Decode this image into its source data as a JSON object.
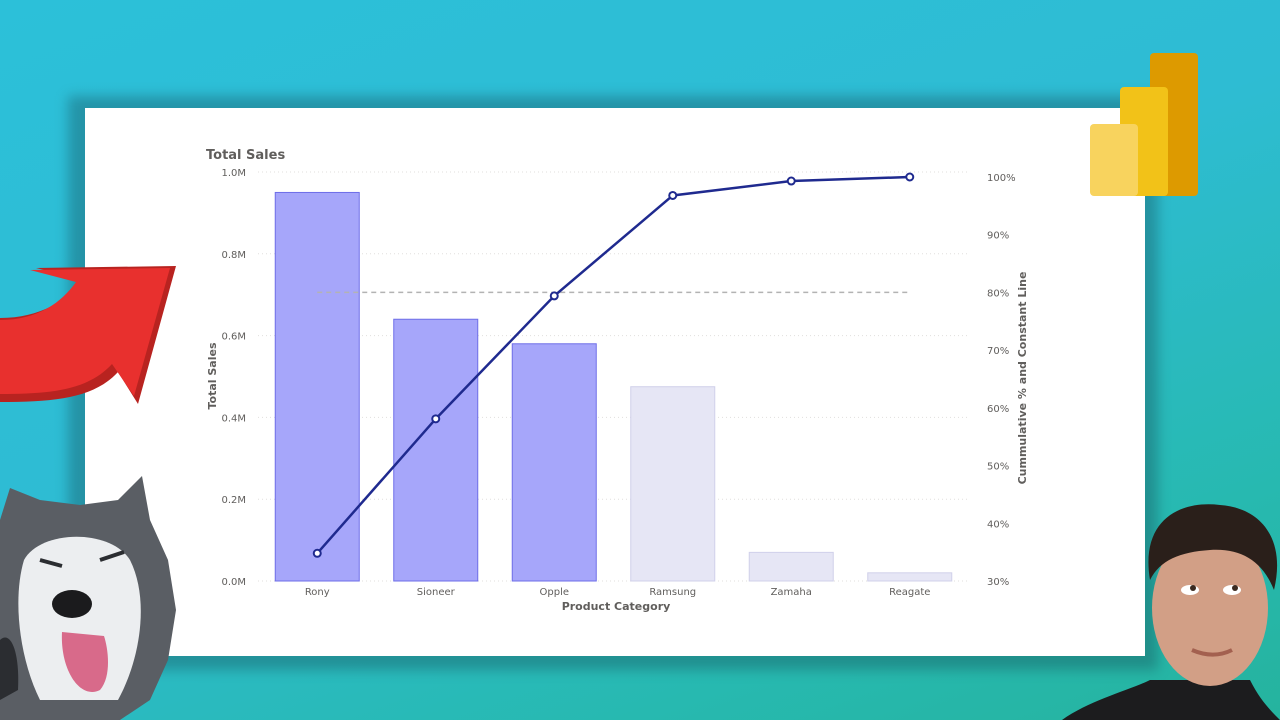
{
  "colors": {
    "bar_highlight": "#a6a6fa",
    "bar_highlight_stroke": "#6e6ee8",
    "bar_dim": "#e6e6f5",
    "bar_dim_stroke": "#d0d0ea",
    "line": "#1f2a8f",
    "constant_line": "#b3b3b3",
    "arrow": "#e8302e",
    "powerbi_light": "#f8d35e",
    "powerbi_mid": "#f2c218",
    "powerbi_dark": "#dd9a00"
  },
  "icons": {
    "logo": "power-bi-logo-icon",
    "arrow": "red-arrow-icon"
  },
  "chart_data": {
    "type": "bar",
    "title": "Total Sales",
    "xlabel": "Product Category",
    "ylabel": "Total Sales",
    "y2label": "Cummulative % and Constant Line",
    "categories": [
      "Rony",
      "Sioneer",
      "Opple",
      "Ramsung",
      "Zamaha",
      "Reagate"
    ],
    "ylim": [
      0,
      1000000
    ],
    "y_ticks": [
      {
        "value": 0,
        "label": "0.0M"
      },
      {
        "value": 200000,
        "label": "0.2M"
      },
      {
        "value": 400000,
        "label": "0.4M"
      },
      {
        "value": 600000,
        "label": "0.6M"
      },
      {
        "value": 800000,
        "label": "0.8M"
      },
      {
        "value": 1000000,
        "label": "1.0M"
      }
    ],
    "y2lim": [
      30,
      100
    ],
    "y2_ticks": [
      {
        "value": 30,
        "label": "30%"
      },
      {
        "value": 40,
        "label": "40%"
      },
      {
        "value": 50,
        "label": "50%"
      },
      {
        "value": 60,
        "label": "60%"
      },
      {
        "value": 70,
        "label": "70%"
      },
      {
        "value": 80,
        "label": "80%"
      },
      {
        "value": 90,
        "label": "90%"
      },
      {
        "value": 100,
        "label": "100%"
      }
    ],
    "grid": true,
    "series": [
      {
        "type": "bar",
        "values": [
          950000,
          640000,
          580000,
          475000,
          70000,
          20000
        ],
        "highlighted": [
          true,
          true,
          true,
          false,
          false,
          false
        ]
      },
      {
        "type": "line",
        "axis": "secondary",
        "values": [
          34.8,
          58.1,
          79.4,
          96.8,
          99.3,
          100
        ]
      },
      {
        "type": "constant_line",
        "axis": "secondary",
        "value": 80
      }
    ]
  }
}
